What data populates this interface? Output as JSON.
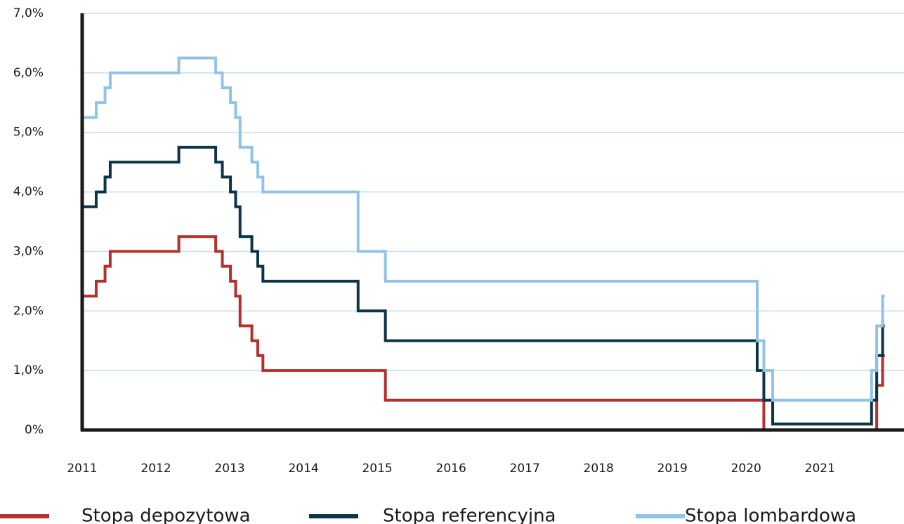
{
  "chart_data": {
    "type": "step",
    "x": [
      2011.0,
      2011.19,
      2011.31,
      2011.38,
      2012.31,
      2012.81,
      2012.9,
      2013.01,
      2013.08,
      2013.14,
      2013.3,
      2013.38,
      2013.45,
      2014.74,
      2015.11,
      2020.15,
      2020.24,
      2020.36,
      2021.7,
      2021.77,
      2021.85,
      2021.88
    ],
    "series": [
      {
        "name": "Stopa depozytowa",
        "color": "#b3312c",
        "values": [
          2.25,
          2.5,
          2.75,
          3.0,
          3.25,
          3.0,
          2.75,
          2.5,
          2.25,
          1.75,
          1.5,
          1.25,
          1.0,
          1.0,
          0.5,
          0.5,
          0,
          0,
          0,
          0.75,
          1.25,
          1.25
        ]
      },
      {
        "name": "Stopa referencyjna",
        "color": "#0d3447",
        "values": [
          3.75,
          4.0,
          4.25,
          4.5,
          4.75,
          4.5,
          4.25,
          4.0,
          3.75,
          3.25,
          3.0,
          2.75,
          2.5,
          2.0,
          1.5,
          1.0,
          0.5,
          0.1,
          0.5,
          1.25,
          1.75,
          1.75
        ]
      },
      {
        "name": "Stopa lombardowa",
        "color": "#92c3e6",
        "values": [
          5.25,
          5.5,
          5.75,
          6.0,
          6.25,
          6.0,
          5.75,
          5.5,
          5.25,
          4.75,
          4.5,
          4.25,
          4.0,
          3.0,
          2.5,
          1.5,
          1.0,
          0.5,
          1.0,
          1.75,
          2.25,
          2.25
        ]
      }
    ],
    "xlim": [
      2011,
      2022.14
    ],
    "xticks": [
      2011,
      2012,
      2013,
      2014,
      2015,
      2016,
      2017,
      2018,
      2019,
      2020,
      2021
    ],
    "ylim": [
      0,
      7
    ],
    "yticks": [
      {
        "value": 0,
        "label": "0%"
      },
      {
        "value": 1,
        "label": "1,0%"
      },
      {
        "value": 2,
        "label": "2,0%"
      },
      {
        "value": 3,
        "label": "3,0%"
      },
      {
        "value": 4,
        "label": "4,0%"
      },
      {
        "value": 5,
        "label": "5,0%"
      },
      {
        "value": 6,
        "label": "6,0%"
      },
      {
        "value": 7,
        "label": "7,0%"
      }
    ],
    "grid": true,
    "legend": "bottom"
  }
}
